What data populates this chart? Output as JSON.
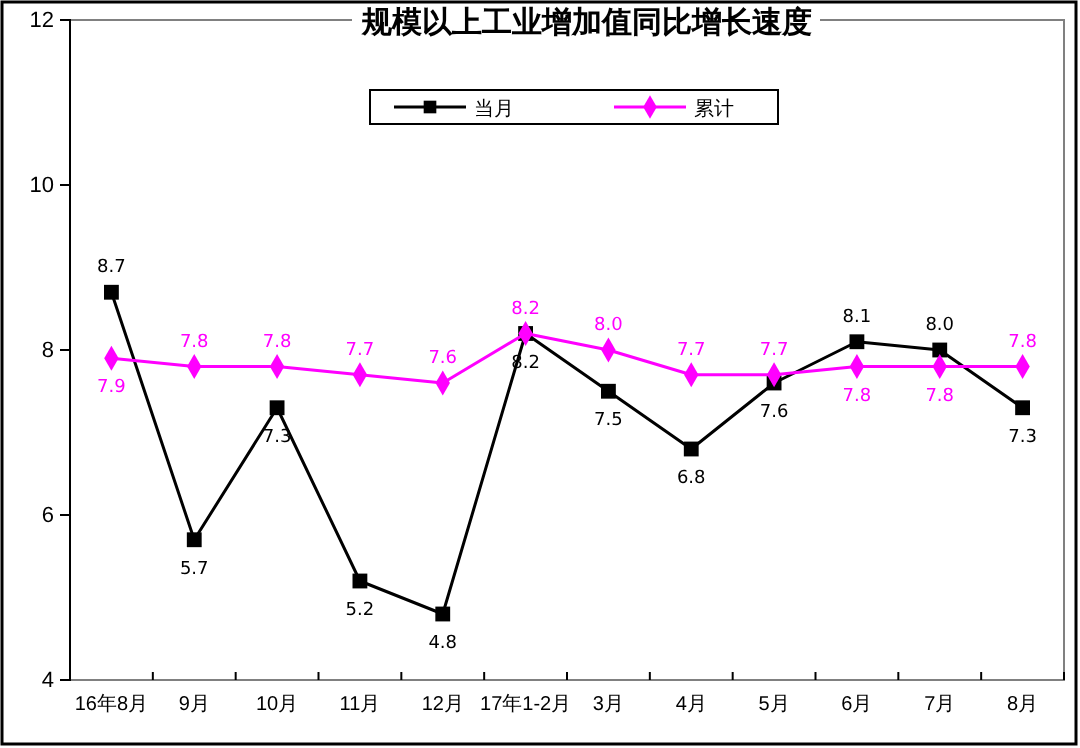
{
  "chart_data": {
    "type": "line",
    "title": "规模以上工业增加值同比增长速度",
    "categories": [
      "16年8月",
      "9月",
      "10月",
      "11月",
      "12月",
      "17年1-2月",
      "3月",
      "4月",
      "5月",
      "6月",
      "7月",
      "8月"
    ],
    "series": [
      {
        "name": "当月",
        "color": "#000000",
        "marker": "square",
        "values": [
          8.7,
          5.7,
          7.3,
          5.2,
          4.8,
          8.2,
          7.5,
          6.8,
          7.6,
          8.1,
          8.0,
          7.3
        ],
        "value_labels": [
          "8.7",
          "5.7",
          "7.3",
          "5.2",
          "4.8",
          "8.2",
          "7.5",
          "6.8",
          "7.6",
          "8.1",
          "8.0",
          "7.3"
        ]
      },
      {
        "name": "累计",
        "color": "#ff00ff",
        "marker": "diamond",
        "values": [
          7.9,
          7.8,
          7.8,
          7.7,
          7.6,
          8.2,
          8.0,
          7.7,
          7.7,
          7.8,
          7.8,
          7.8
        ],
        "value_labels": [
          "7.9",
          "7.8",
          "7.8",
          "7.7",
          "7.6",
          "8.2",
          "8.0",
          "7.7",
          "7.7",
          "7.8",
          "7.8",
          "7.8"
        ]
      }
    ],
    "ylim": [
      4,
      12
    ],
    "yticks": [
      4,
      6,
      8,
      10,
      12
    ],
    "legend": "top",
    "grid": false
  }
}
